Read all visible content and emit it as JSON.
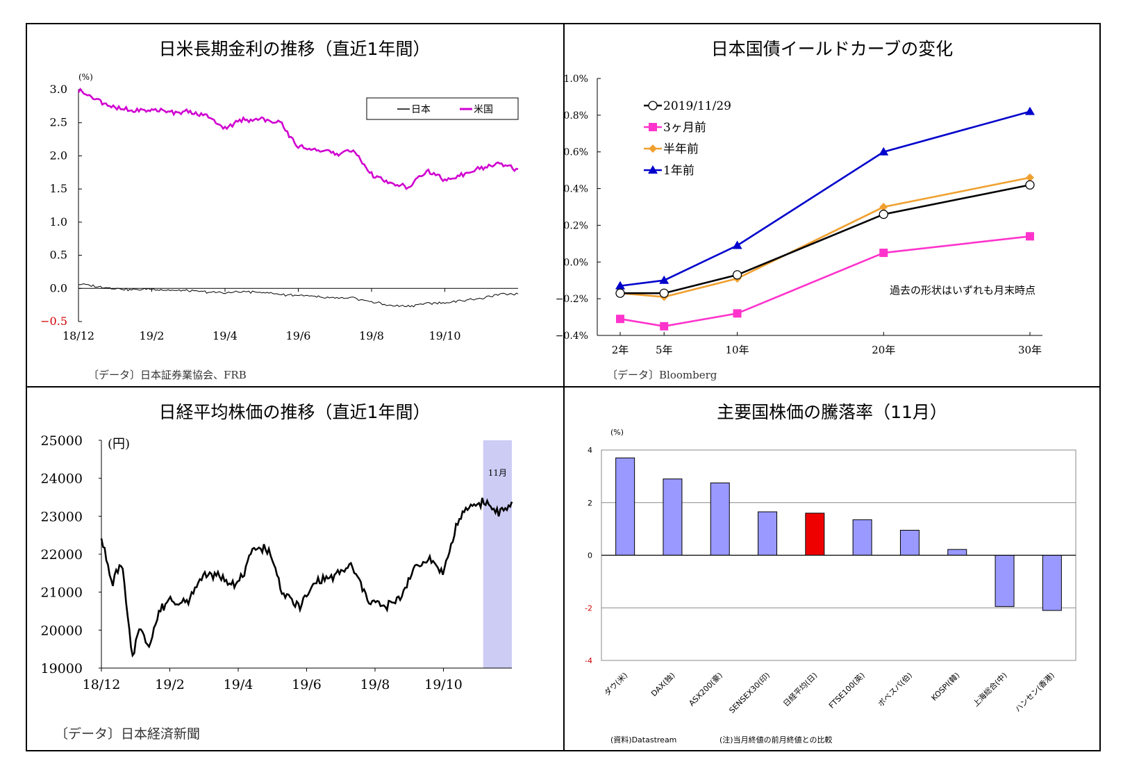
{
  "panels": {
    "rates": {
      "title": "日米長期金利の推移（直近1年間）",
      "unit": "(%)",
      "source": "〔データ〕日本証券業協会、FRB"
    },
    "yield": {
      "title": "日本国債イールドカーブの変化",
      "source": "〔データ〕Bloomberg",
      "note": "過去の形状はいずれも月末時点"
    },
    "nikkei": {
      "title": "日経平均株価の推移（直近1年間）",
      "unit": "(円)",
      "source": "〔データ〕日本経済新聞",
      "highlight_label": "11月"
    },
    "stocks": {
      "title": "主要国株価の騰落率（11月）",
      "unit": "(%)",
      "source_left": "(資料)Datastream",
      "source_right": "(注)当月終値の前月終値との比較"
    }
  },
  "chart_data": [
    {
      "id": "rates",
      "type": "line",
      "title": "日米長期金利の推移（直近1年間）",
      "ylabel": "(%)",
      "ylim": [
        -0.5,
        3.0
      ],
      "yticks": [
        "3.0",
        "2.5",
        "2.0",
        "1.5",
        "1.0",
        "0.5",
        "0.0",
        "-0.5"
      ],
      "xticks": [
        "18/12",
        "19/2",
        "19/4",
        "19/6",
        "19/8",
        "19/10"
      ],
      "legend_position": "top-right",
      "series": [
        {
          "name": "日本",
          "color": "#000000",
          "x_months": [
            0,
            0.5,
            1,
            1.5,
            2,
            2.5,
            3,
            3.5,
            4,
            4.5,
            5,
            5.5,
            6,
            6.5,
            7,
            7.5,
            8,
            8.5,
            9,
            9.5,
            10,
            10.5,
            11,
            11.5,
            12
          ],
          "values": [
            0.07,
            0.03,
            0.0,
            -0.02,
            -0.01,
            -0.03,
            -0.04,
            -0.05,
            -0.07,
            -0.05,
            -0.06,
            -0.09,
            -0.1,
            -0.13,
            -0.15,
            -0.15,
            -0.2,
            -0.26,
            -0.27,
            -0.22,
            -0.22,
            -0.18,
            -0.15,
            -0.09,
            -0.08
          ]
        },
        {
          "name": "米国",
          "color": "#d000d0",
          "x_months": [
            0,
            0.5,
            1,
            1.5,
            2,
            2.5,
            3,
            3.5,
            4,
            4.5,
            5,
            5.5,
            6,
            6.5,
            7,
            7.5,
            8,
            8.5,
            9,
            9.5,
            10,
            10.5,
            11,
            11.5,
            12
          ],
          "values": [
            2.99,
            2.85,
            2.72,
            2.68,
            2.7,
            2.67,
            2.66,
            2.6,
            2.42,
            2.55,
            2.55,
            2.5,
            2.14,
            2.1,
            2.03,
            2.08,
            1.72,
            1.58,
            1.52,
            1.78,
            1.62,
            1.72,
            1.82,
            1.88,
            1.78
          ]
        }
      ]
    },
    {
      "id": "yield",
      "type": "line",
      "title": "日本国債イールドカーブの変化",
      "ylim": [
        -0.4,
        1.0
      ],
      "yticks": [
        "1.0%",
        "0.8%",
        "0.6%",
        "0.4%",
        "0.2%",
        "0.0%",
        "-0.2%",
        "-0.4%"
      ],
      "categories": [
        "2年",
        "5年",
        "10年",
        "20年",
        "30年"
      ],
      "x_years": [
        2,
        5,
        10,
        20,
        30
      ],
      "series": [
        {
          "name": "2019/11/29",
          "color": "#000000",
          "marker": "circle-open",
          "values": [
            -0.17,
            -0.17,
            -0.07,
            0.26,
            0.42
          ]
        },
        {
          "name": "3ヶ月前",
          "color": "#ff33cc",
          "marker": "square",
          "values": [
            -0.31,
            -0.35,
            -0.28,
            0.05,
            0.14
          ]
        },
        {
          "name": "半年前",
          "color": "#f0a030",
          "marker": "diamond",
          "values": [
            -0.17,
            -0.19,
            -0.09,
            0.3,
            0.46
          ]
        },
        {
          "name": "1年前",
          "color": "#0000cc",
          "marker": "triangle",
          "values": [
            -0.13,
            -0.1,
            0.09,
            0.6,
            0.82
          ]
        }
      ]
    },
    {
      "id": "nikkei",
      "type": "line",
      "title": "日経平均株価の推移（直近1年間）",
      "ylabel": "(円)",
      "ylim": [
        19000,
        25000
      ],
      "yticks": [
        "25000",
        "24000",
        "23000",
        "22000",
        "21000",
        "20000",
        "19000"
      ],
      "xticks": [
        "18/12",
        "19/2",
        "19/4",
        "19/6",
        "19/8",
        "19/10"
      ],
      "series": [
        {
          "name": "日経平均",
          "color": "#000000",
          "x_months": [
            0,
            0.3,
            0.6,
            0.9,
            1.1,
            1.4,
            1.7,
            2.0,
            2.5,
            3.0,
            3.5,
            4.0,
            4.5,
            4.9,
            5.3,
            5.8,
            6.3,
            6.8,
            7.3,
            7.8,
            8.3,
            8.7,
            9.2,
            9.6,
            10.0,
            10.4,
            10.8,
            11.2,
            11.6,
            12.0
          ],
          "values": [
            22500,
            21200,
            21800,
            19200,
            20100,
            19600,
            20500,
            20800,
            20700,
            21500,
            21400,
            21200,
            22200,
            22100,
            21000,
            20600,
            21300,
            21400,
            21700,
            20800,
            20600,
            20800,
            21700,
            21900,
            21500,
            22800,
            23300,
            23400,
            23100,
            23300
          ]
        }
      ],
      "highlight": {
        "label": "11月",
        "x_start_month": 11.0,
        "x_end_month": 12.0,
        "color": "#ccccf5"
      }
    },
    {
      "id": "stocks",
      "type": "bar",
      "title": "主要国株価の騰落率（11月）",
      "ylabel": "(%)",
      "ylim": [
        -4,
        4
      ],
      "yticks": [
        "4",
        "2",
        "0",
        "-2",
        "-4"
      ],
      "categories": [
        "ダウ(米)",
        "DAX(独)",
        "ASX200(豪)",
        "SENSEX30(印)",
        "日経平均(日)",
        "FTSE100(英)",
        "ボベスパ(伯)",
        "KOSPI(韓)",
        "上海総合(中)",
        "ハンセン(香港)"
      ],
      "values": [
        3.7,
        2.9,
        2.75,
        1.65,
        1.6,
        1.35,
        0.95,
        0.22,
        -1.95,
        -2.1
      ],
      "colors": [
        "#9999ff",
        "#9999ff",
        "#9999ff",
        "#9999ff",
        "#ee0000",
        "#9999ff",
        "#9999ff",
        "#9999ff",
        "#9999ff",
        "#9999ff"
      ]
    }
  ]
}
